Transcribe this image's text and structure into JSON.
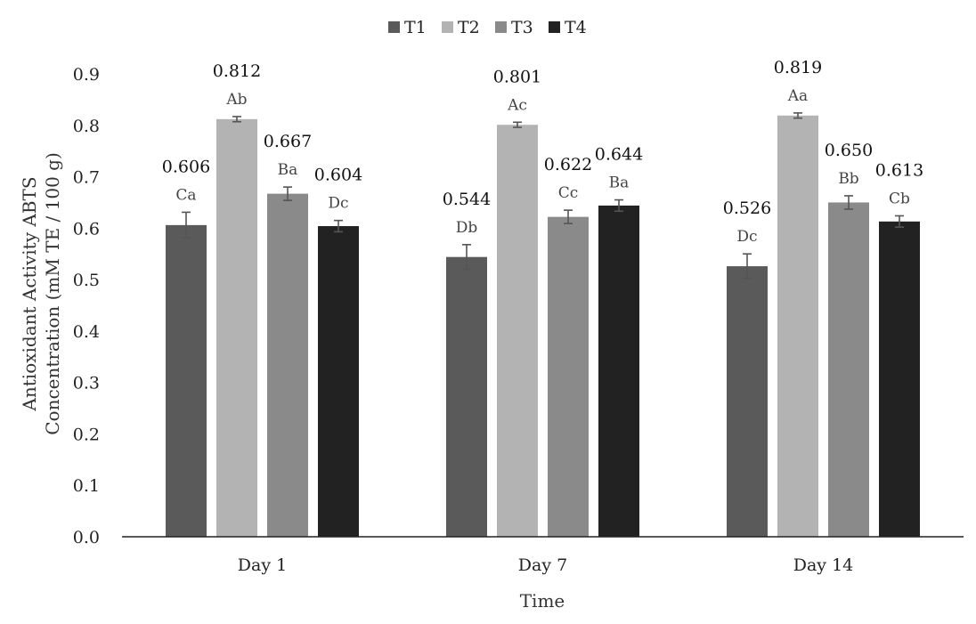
{
  "chart_data": {
    "type": "bar",
    "title": "",
    "xlabel": "Time",
    "ylabel_lines": [
      "Antioxidant Activity ABTS",
      "Concentration (mM TE / 100 g)"
    ],
    "ylim": [
      0,
      0.9
    ],
    "yticks": [
      "0.0",
      "0.1",
      "0.2",
      "0.3",
      "0.4",
      "0.5",
      "0.6",
      "0.7",
      "0.8",
      "0.9"
    ],
    "categories": [
      "Day 1",
      "Day 7",
      "Day 14"
    ],
    "legend_position": "top-center",
    "series": [
      {
        "name": "T1",
        "color": "#5a5a5a",
        "values": [
          0.606,
          0.544,
          0.526
        ],
        "labels": [
          "0.606",
          "0.544",
          "0.526"
        ],
        "letters": [
          "Ca",
          "Db",
          "Dc"
        ],
        "errors": [
          0.025,
          0.024,
          0.024
        ]
      },
      {
        "name": "T2",
        "color": "#b3b3b3",
        "values": [
          0.812,
          0.801,
          0.819
        ],
        "labels": [
          "0.812",
          "0.801",
          "0.819"
        ],
        "letters": [
          "Ab",
          "Ac",
          "Aa"
        ],
        "errors": [
          0.005,
          0.005,
          0.005
        ]
      },
      {
        "name": "T3",
        "color": "#8a8a8a",
        "values": [
          0.667,
          0.622,
          0.65
        ],
        "labels": [
          "0.667",
          "0.622",
          "0.650"
        ],
        "letters": [
          "Ba",
          "Cc",
          "Bb"
        ],
        "errors": [
          0.013,
          0.013,
          0.013
        ]
      },
      {
        "name": "T4",
        "color": "#222222",
        "values": [
          0.604,
          0.644,
          0.613
        ],
        "labels": [
          "0.604",
          "0.644",
          "0.613"
        ],
        "letters": [
          "Dc",
          "Ba",
          "Cb"
        ],
        "errors": [
          0.011,
          0.011,
          0.011
        ]
      }
    ]
  }
}
